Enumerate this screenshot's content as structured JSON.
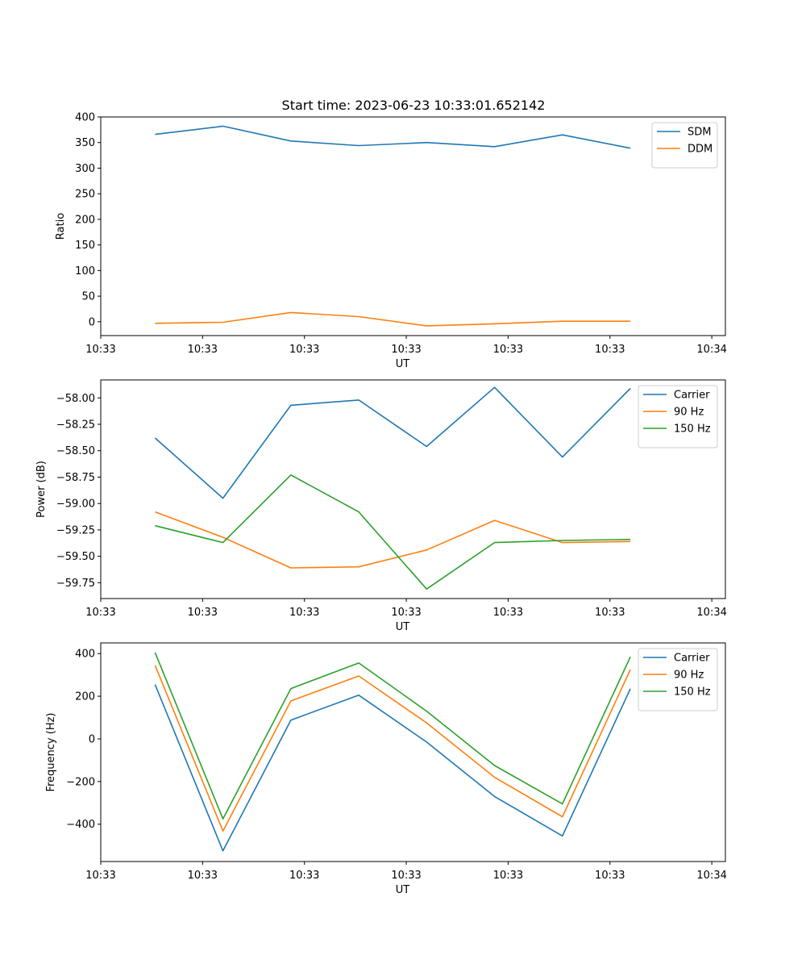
{
  "chart_data": [
    {
      "type": "line",
      "title": "Start time: 2023-06-23 10:33:01.652142",
      "xlabel": "UT",
      "ylabel": "Ratio",
      "x": [
        1,
        2,
        3,
        4,
        5,
        6,
        7,
        8
      ],
      "xlim": [
        0.2,
        9.4
      ],
      "x_ticks": [
        0.2,
        1.7,
        3.2,
        4.7,
        6.2,
        7.7,
        9.2
      ],
      "x_tick_labels": [
        "10:33",
        "10:33",
        "10:33",
        "10:33",
        "10:33",
        "10:33",
        "10:34"
      ],
      "ylim": [
        -27,
        400
      ],
      "y_ticks": [
        0,
        50,
        100,
        150,
        200,
        250,
        300,
        350,
        400
      ],
      "y_tick_labels": [
        "0",
        "50",
        "100",
        "150",
        "200",
        "250",
        "300",
        "350",
        "400"
      ],
      "legend": "top-right",
      "series": [
        {
          "name": "SDM",
          "color": "#1f77b4",
          "values": [
            366,
            382,
            353,
            344,
            350,
            342,
            365,
            339
          ]
        },
        {
          "name": "DDM",
          "color": "#ff7f0e",
          "values": [
            -3,
            -1,
            18,
            10,
            -8,
            -4,
            1,
            1
          ]
        }
      ]
    },
    {
      "type": "line",
      "xlabel": "UT",
      "ylabel": "Power (dB)",
      "x": [
        1,
        2,
        3,
        4,
        5,
        6,
        7,
        8
      ],
      "xlim": [
        0.2,
        9.4
      ],
      "x_ticks": [
        0.2,
        1.7,
        3.2,
        4.7,
        6.2,
        7.7,
        9.2
      ],
      "x_tick_labels": [
        "10:33",
        "10:33",
        "10:33",
        "10:33",
        "10:33",
        "10:33",
        "10:34"
      ],
      "ylim": [
        -59.9,
        -57.83
      ],
      "y_ticks": [
        -59.75,
        -59.5,
        -59.25,
        -59.0,
        -58.75,
        -58.5,
        -58.25,
        -58.0
      ],
      "y_tick_labels": [
        "−59.75",
        "−59.50",
        "−59.25",
        "−59.00",
        "−58.75",
        "−58.50",
        "−58.25",
        "−58.00"
      ],
      "legend": "top-right",
      "series": [
        {
          "name": "Carrier",
          "color": "#1f77b4",
          "values": [
            -58.38,
            -58.95,
            -58.07,
            -58.02,
            -58.46,
            -57.9,
            -58.56,
            -57.91
          ]
        },
        {
          "name": "90 Hz",
          "color": "#ff7f0e",
          "values": [
            -59.08,
            -59.32,
            -59.61,
            -59.6,
            -59.44,
            -59.16,
            -59.37,
            -59.36
          ]
        },
        {
          "name": "150 Hz",
          "color": "#2ca02c",
          "values": [
            -59.21,
            -59.37,
            -58.73,
            -59.08,
            -59.81,
            -59.37,
            -59.35,
            -59.34
          ]
        }
      ]
    },
    {
      "type": "line",
      "xlabel": "UT",
      "ylabel": "Frequency (Hz)",
      "x": [
        1,
        2,
        3,
        4,
        5,
        6,
        7,
        8
      ],
      "xlim": [
        0.2,
        9.4
      ],
      "x_ticks": [
        0.2,
        1.7,
        3.2,
        4.7,
        6.2,
        7.7,
        9.2
      ],
      "x_tick_labels": [
        "10:33",
        "10:33",
        "10:33",
        "10:33",
        "10:33",
        "10:33",
        "10:34"
      ],
      "ylim": [
        -575,
        450
      ],
      "y_ticks": [
        -400,
        -200,
        0,
        200,
        400
      ],
      "y_tick_labels": [
        "−400",
        "−200",
        "0",
        "200",
        "400"
      ],
      "legend": "top-right",
      "series": [
        {
          "name": "Carrier",
          "color": "#1f77b4",
          "values": [
            255,
            -525,
            88,
            205,
            -15,
            -270,
            -455,
            235
          ]
        },
        {
          "name": "90 Hz",
          "color": "#ff7f0e",
          "values": [
            345,
            -432,
            178,
            295,
            75,
            -180,
            -365,
            325
          ]
        },
        {
          "name": "150 Hz",
          "color": "#2ca02c",
          "values": [
            405,
            -375,
            236,
            356,
            130,
            -125,
            -305,
            385
          ]
        }
      ]
    }
  ]
}
